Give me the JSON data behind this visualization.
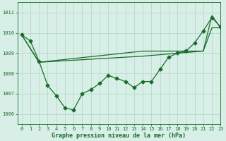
{
  "bg_color": "#d8efe8",
  "grid_color": "#b0d4c4",
  "line_color": "#1a6b2a",
  "title": "Graphe pression niveau de la mer (hPa)",
  "xlim": [
    -0.5,
    23
  ],
  "ylim": [
    1005.5,
    1011.5
  ],
  "yticks": [
    1006,
    1007,
    1008,
    1009,
    1010,
    1011
  ],
  "xticks": [
    0,
    1,
    2,
    3,
    4,
    5,
    6,
    7,
    8,
    9,
    10,
    11,
    12,
    13,
    14,
    15,
    16,
    17,
    18,
    19,
    20,
    21,
    22,
    23
  ],
  "series1_x": [
    0,
    1,
    2,
    3,
    4,
    5,
    6,
    7,
    8,
    9,
    10,
    11,
    12,
    13,
    14,
    15,
    16,
    17,
    18,
    19,
    20,
    21,
    22,
    23
  ],
  "series1_y": [
    1009.9,
    1009.6,
    1008.6,
    1007.4,
    1006.9,
    1006.3,
    1006.2,
    1007.0,
    1007.2,
    1007.5,
    1007.9,
    1007.75,
    1007.6,
    1007.3,
    1007.6,
    1007.6,
    1008.2,
    1008.8,
    1009.0,
    1009.1,
    1009.5,
    1010.1,
    1010.75,
    1010.3
  ],
  "series2_x": [
    0,
    2,
    14,
    21,
    22,
    23
  ],
  "series2_y": [
    1009.9,
    1008.55,
    1008.85,
    1009.1,
    1010.85,
    1010.25
  ],
  "series3_x": [
    0,
    2,
    14,
    21,
    22,
    23
  ],
  "series3_y": [
    1009.9,
    1008.55,
    1009.1,
    1009.1,
    1010.25,
    1010.25
  ],
  "marker_size": 2.5,
  "lw": 0.9,
  "tick_fontsize": 5.0,
  "xlabel_fontsize": 6.0
}
